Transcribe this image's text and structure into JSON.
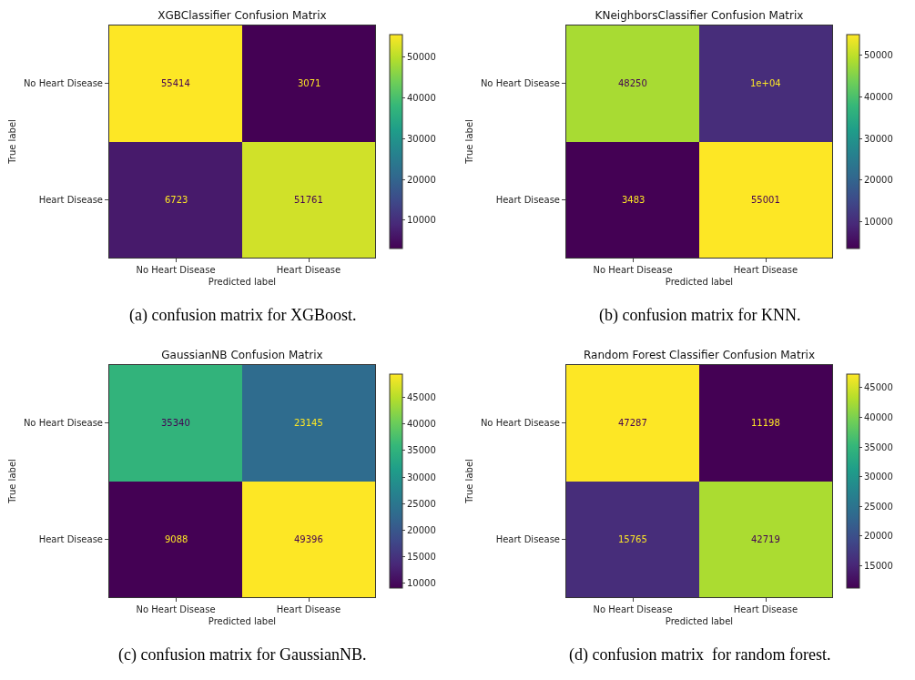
{
  "chart_data": [
    {
      "type": "heatmap",
      "title": "XGBClassifier Confusion Matrix",
      "xlabel": "Predicted label",
      "ylabel": "True label",
      "categories": [
        "No Heart Disease",
        "Heart Disease"
      ],
      "y_categories": [
        "No Heart Disease",
        "Heart Disease"
      ],
      "cells": [
        [
          55414,
          3071
        ],
        [
          6723,
          51761
        ]
      ],
      "cell_labels": [
        [
          "55414",
          "3071"
        ],
        [
          "6723",
          "51761"
        ]
      ],
      "clim": [
        3071,
        55414
      ],
      "cticks": [
        10000,
        20000,
        30000,
        40000,
        50000
      ],
      "annotations": [
        "(a) confusion matrix for XGBoost."
      ]
    },
    {
      "type": "heatmap",
      "title": "KNeighborsClassifier Confusion Matrix",
      "xlabel": "Predicted label",
      "ylabel": "True label",
      "categories": [
        "No Heart Disease",
        "Heart Disease"
      ],
      "y_categories": [
        "No Heart Disease",
        "Heart Disease"
      ],
      "cells": [
        [
          48250,
          10000
        ],
        [
          3483,
          55001
        ]
      ],
      "cell_labels": [
        [
          "48250",
          "1e+04"
        ],
        [
          "3483",
          "55001"
        ]
      ],
      "clim": [
        3483,
        55001
      ],
      "cticks": [
        10000,
        20000,
        30000,
        40000,
        50000
      ],
      "annotations": [
        "(b) confusion matrix for KNN."
      ]
    },
    {
      "type": "heatmap",
      "title": "GaussianNB Confusion Matrix",
      "xlabel": "Predicted label",
      "ylabel": "True label",
      "categories": [
        "No Heart Disease",
        "Heart Disease"
      ],
      "y_categories": [
        "No Heart Disease",
        "Heart Disease"
      ],
      "cells": [
        [
          35340,
          23145
        ],
        [
          9088,
          49396
        ]
      ],
      "cell_labels": [
        [
          "35340",
          "23145"
        ],
        [
          "9088",
          "49396"
        ]
      ],
      "clim": [
        9088,
        49396
      ],
      "cticks": [
        10000,
        15000,
        20000,
        25000,
        30000,
        35000,
        40000,
        45000
      ],
      "annotations": [
        "(c) confusion matrix for GaussianNB."
      ]
    },
    {
      "type": "heatmap",
      "title": "Random Forest Classifier Confusion Matrix",
      "xlabel": "Predicted label",
      "ylabel": "True label",
      "categories": [
        "No Heart Disease",
        "Heart Disease"
      ],
      "y_categories": [
        "No Heart Disease",
        "Heart Disease"
      ],
      "cells": [
        [
          47287,
          11198
        ],
        [
          15765,
          42719
        ]
      ],
      "cell_labels": [
        [
          "47287",
          "11198"
        ],
        [
          "15765",
          "42719"
        ]
      ],
      "clim": [
        11198,
        47287
      ],
      "cticks": [
        15000,
        20000,
        25000,
        30000,
        35000,
        40000,
        45000
      ],
      "annotations": [
        "(d) confusion matrix  for random forest."
      ]
    }
  ]
}
